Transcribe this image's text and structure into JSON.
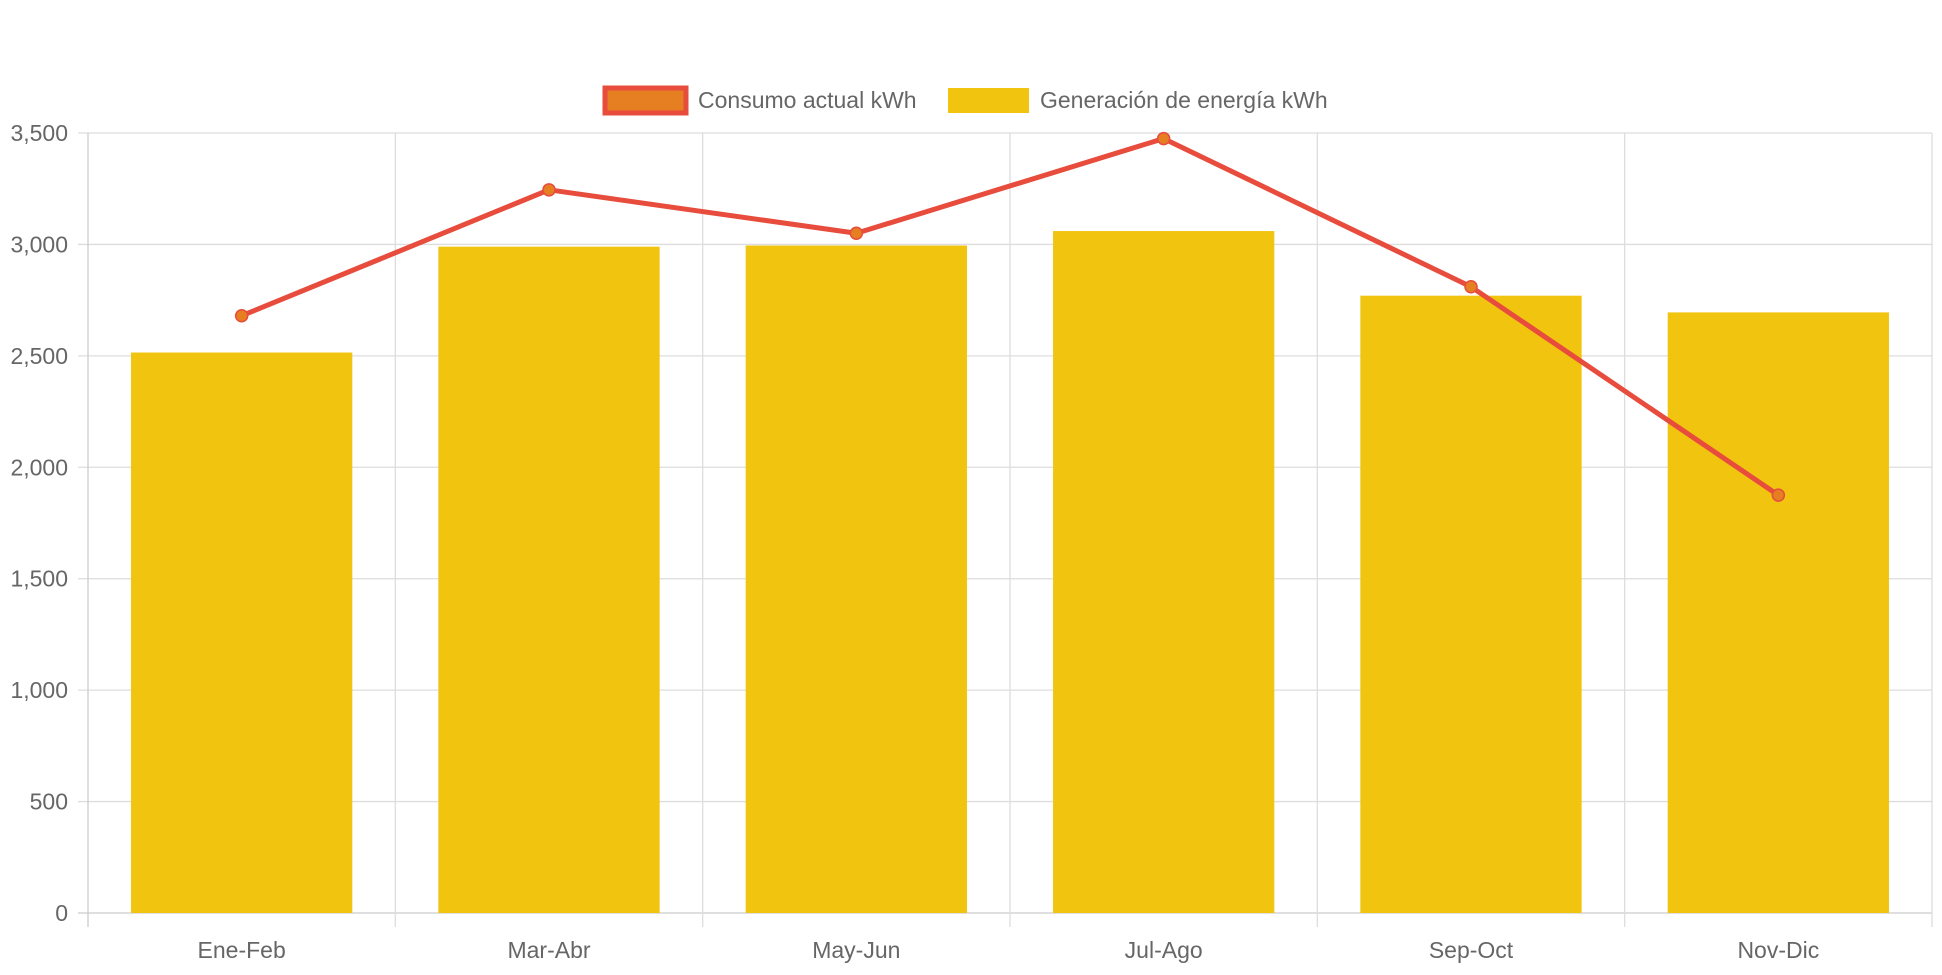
{
  "chart_data": {
    "type": "bar",
    "categories": [
      "Ene-Feb",
      "Mar-Abr",
      "May-Jun",
      "Jul-Ago",
      "Sep-Oct",
      "Nov-Dic"
    ],
    "series": [
      {
        "name": "Consumo actual kWh",
        "type": "line",
        "values": [
          2680,
          3245,
          3050,
          3475,
          2810,
          1875
        ],
        "color": "#e74c3c",
        "point_color": "#e67e22"
      },
      {
        "name": "Generación de energía kWh",
        "type": "bar",
        "values": [
          2515,
          2990,
          2995,
          3060,
          2770,
          2695
        ],
        "color": "#f1c40f"
      }
    ],
    "ylim": [
      0,
      3500
    ],
    "yticks": [
      0,
      500,
      1000,
      1500,
      2000,
      2500,
      3000,
      3500
    ],
    "ytick_labels": [
      "0",
      "500",
      "1,000",
      "1,500",
      "2,000",
      "2,500",
      "3,000",
      "3,500"
    ],
    "grid": true,
    "legend_position": "top",
    "grid_color": "#dddddd",
    "tick_label_color": "#666666"
  }
}
